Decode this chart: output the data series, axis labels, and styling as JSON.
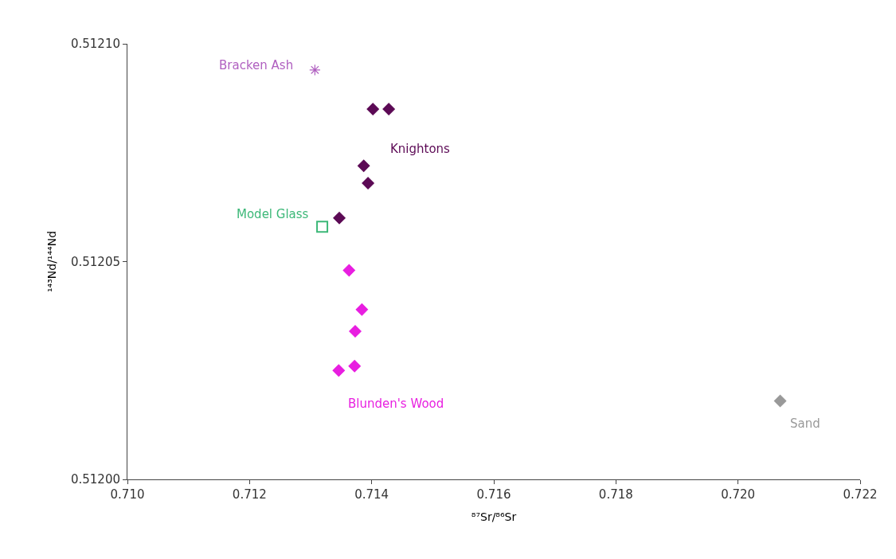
{
  "chart_data": {
    "type": "scatter",
    "xlabel": "⁸⁷Sr/⁸⁶Sr",
    "ylabel": "¹⁴³Nd/¹⁴⁴Nd",
    "xlim": [
      0.71,
      0.722
    ],
    "xticks": [
      {
        "value": 0.71,
        "label": "0.710"
      },
      {
        "value": 0.712,
        "label": "0.712"
      },
      {
        "value": 0.714,
        "label": "0.714"
      },
      {
        "value": 0.716,
        "label": "0.716"
      },
      {
        "value": 0.718,
        "label": "0.718"
      },
      {
        "value": 0.72,
        "label": "0.720"
      },
      {
        "value": 0.722,
        "label": "0.722"
      }
    ],
    "ylim": [
      0.512,
      0.5121
    ],
    "yticks": [
      {
        "value": 0.512,
        "label": "0.51200"
      },
      {
        "value": 0.51205,
        "label": "0.51205"
      },
      {
        "value": 0.5121,
        "label": "0.51210"
      }
    ],
    "series": [
      {
        "name": "Bracken Ash",
        "color": "#b060c0",
        "marker": "cross",
        "x": [
          0.71307
        ],
        "values": [
          0.512094
        ]
      },
      {
        "name": "Knightons",
        "color": "#5c0a55",
        "marker": "diamond",
        "x": [
          0.71402,
          0.71428,
          0.71387,
          0.71394,
          0.71347
        ],
        "values": [
          0.512085,
          0.512085,
          0.512072,
          0.512068,
          0.51206
        ]
      },
      {
        "name": "Model Glass",
        "color": "#3cb878",
        "marker": "square",
        "x": [
          0.71319
        ],
        "values": [
          0.512058
        ]
      },
      {
        "name": "Blunden's Wood",
        "color": "#e81ee0",
        "marker": "diamond",
        "x": [
          0.71363,
          0.71384,
          0.71373,
          0.71372,
          0.71346
        ],
        "values": [
          0.512048,
          0.512039,
          0.512034,
          0.512026,
          0.512025
        ]
      },
      {
        "name": "Sand",
        "color": "#999999",
        "marker": "diamond",
        "x": [
          0.72069
        ],
        "values": [
          0.512018
        ]
      }
    ]
  }
}
